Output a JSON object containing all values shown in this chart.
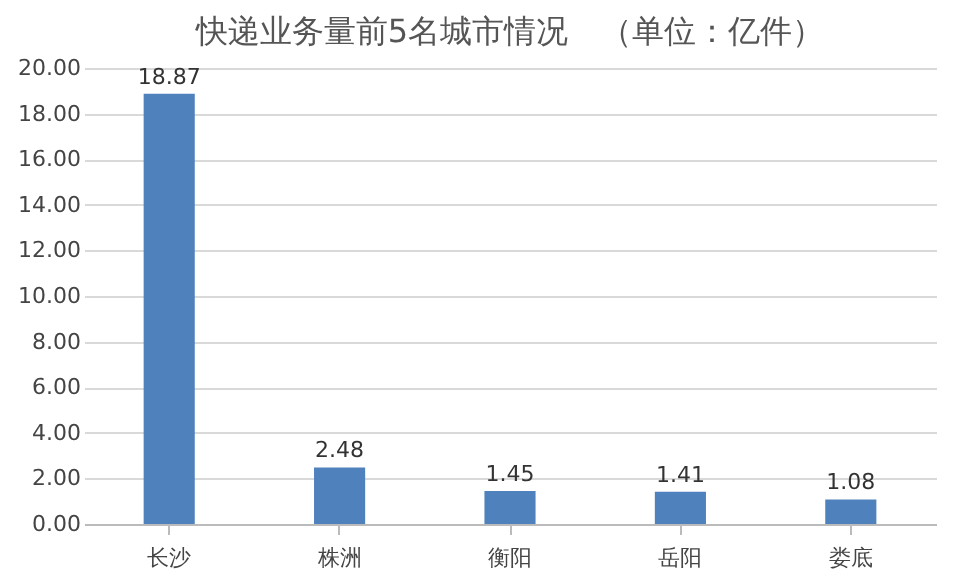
{
  "chart_data": {
    "type": "bar",
    "title": "快递业务量前5名城市情况　（单位：亿件）",
    "categories": [
      "长沙",
      "株洲",
      "衡阳",
      "岳阳",
      "娄底"
    ],
    "values": [
      18.87,
      2.48,
      1.45,
      1.41,
      1.08
    ],
    "color": "#4f81bd",
    "ylim": [
      0,
      20
    ],
    "yticks": [
      {
        "value": 0,
        "label": "0.00"
      },
      {
        "value": 2,
        "label": "2.00"
      },
      {
        "value": 4,
        "label": "4.00"
      },
      {
        "value": 6,
        "label": "6.00"
      },
      {
        "value": 8,
        "label": "8.00"
      },
      {
        "value": 10,
        "label": "10.00"
      },
      {
        "value": 12,
        "label": "12.00"
      },
      {
        "value": 14,
        "label": "14.00"
      },
      {
        "value": 16,
        "label": "16.00"
      },
      {
        "value": 18,
        "label": "18.00"
      },
      {
        "value": 20,
        "label": "20.00"
      }
    ],
    "grid": "y",
    "data_labels": true
  }
}
